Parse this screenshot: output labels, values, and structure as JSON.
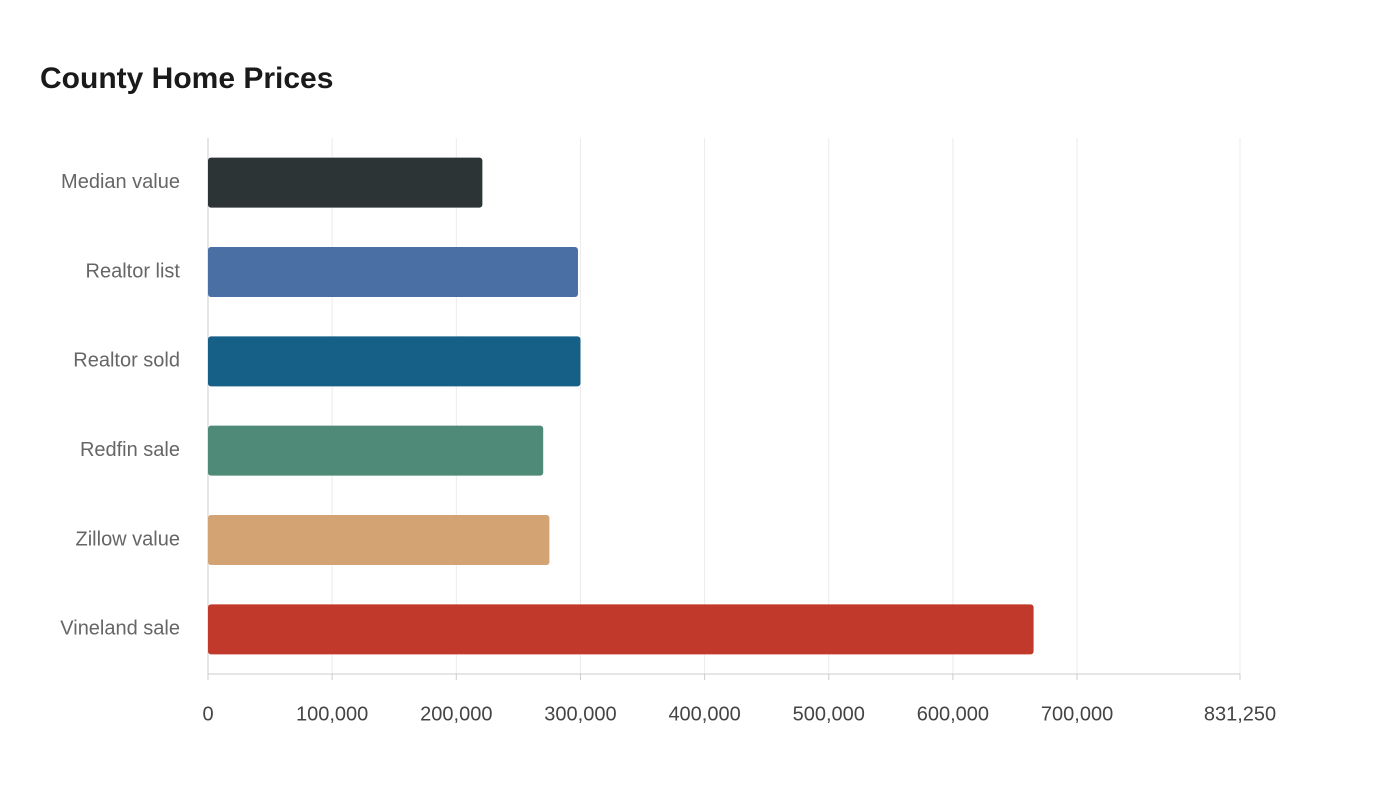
{
  "chart_data": {
    "type": "bar",
    "orientation": "horizontal",
    "title": "County Home Prices",
    "categories": [
      "Median value",
      "Realtor list",
      "Realtor sold",
      "Redfin sale",
      "Zillow value",
      "Vineland sale"
    ],
    "values": [
      221000,
      298000,
      300000,
      270000,
      275000,
      665000
    ],
    "colors": [
      "#2d3436",
      "#4a6fa5",
      "#166088",
      "#4f8a78",
      "#d4a373",
      "#c0392b"
    ],
    "xlim": [
      0,
      831250
    ],
    "xticks": [
      0,
      {
        "value": 100000,
        "label": "100,000"
      },
      {
        "value": 200000,
        "label": "200,000"
      },
      {
        "value": 300000,
        "label": "300,000"
      },
      {
        "value": 400000,
        "label": "400,000"
      },
      {
        "value": 500000,
        "label": "500,000"
      },
      {
        "value": 600000,
        "label": "600,000"
      },
      {
        "value": 700000,
        "label": "700,000"
      },
      {
        "value": 831250,
        "label": "831,250"
      }
    ],
    "grid": true
  }
}
